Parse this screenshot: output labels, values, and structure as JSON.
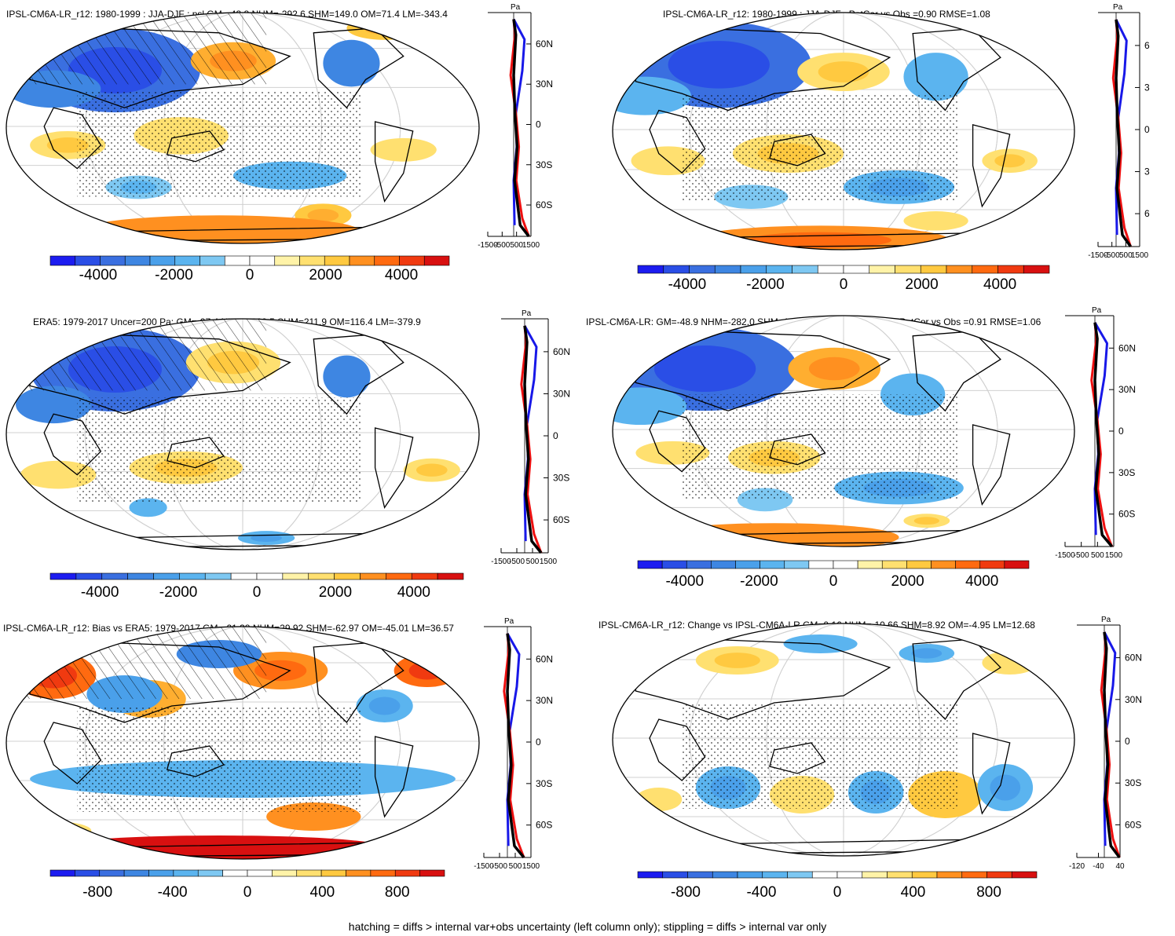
{
  "footer": "hatching = diffs > internal var+obs uncertainty (left column only); stippling = diffs > internal var only",
  "colors": {
    "scale": [
      "#1c1cf0",
      "#2a4ee6",
      "#3a6fe0",
      "#3e86e2",
      "#4aa0ea",
      "#5bb4ef",
      "#7ec8f2",
      "#ffffff",
      "#ffffff",
      "#fff3a8",
      "#ffe070",
      "#ffc940",
      "#ffae30",
      "#ff9020",
      "#ff6a10",
      "#f03a10",
      "#d81010"
    ],
    "blue_line": "#1818e8",
    "red_line": "#ee1010",
    "black_line": "#000000"
  },
  "chart_data": [
    {
      "type": "heatmap",
      "panel": "a",
      "title": "IPSL-CM6A-LR_r12: 1980-1999 : JJA-DJF : psl GM=-48.8 NHM=-292.6 SHM=149.0 OM=71.4 LM=-343.4",
      "colorbar_ticks": [
        "-4000",
        "-2000",
        "0",
        "2000",
        "4000"
      ],
      "profile": {
        "unit": "Pa",
        "lat_ticks": [
          "60N",
          "30N",
          "0",
          "30S",
          "60S"
        ],
        "x_ticks": [
          "-1500",
          "-500",
          "500",
          "1500"
        ]
      }
    },
    {
      "type": "heatmap",
      "panel": "b",
      "title": "IPSL-CM6A-LR_r12: 1980-1999 : JJA-DJF : PatCor vs Obs =0.90 RMSE=1.08",
      "colorbar_ticks": [
        "-4000",
        "-2000",
        "0",
        "2000",
        "4000"
      ],
      "profile": {
        "unit": "Pa",
        "lat_ticks": [
          "6",
          "3",
          "0",
          "3",
          "6"
        ],
        "x_ticks": [
          "-1500",
          "-500",
          "500",
          "1500"
        ]
      }
    },
    {
      "type": "heatmap",
      "panel": "c",
      "title": "ERA5: 1979-2017 Uncer=200 Pa: GM=-27.4 NHM=-322.5 SHM=211.9 OM=116.4 LM=-379.9",
      "colorbar_ticks": [
        "-4000",
        "-2000",
        "0",
        "2000",
        "4000"
      ],
      "profile": {
        "unit": "Pa",
        "lat_ticks": [
          "60N",
          "30N",
          "0",
          "30S",
          "60S"
        ],
        "x_ticks": [
          "-1500",
          "-500",
          "500",
          "1500"
        ]
      }
    },
    {
      "type": "heatmap",
      "panel": "d",
      "title": "IPSL-CM6A-LR: GM=-48.9 NHM=-282.0 SHM=140.0 OM=76.3 LM=-356.0 PatCor vs Obs =0.91 RMSE=1.06",
      "colorbar_ticks": [
        "-4000",
        "-2000",
        "0",
        "2000",
        "4000"
      ],
      "profile": {
        "unit": "Pa",
        "lat_ticks": [
          "60N",
          "30N",
          "0",
          "30S",
          "60S"
        ],
        "x_ticks": [
          "-1500",
          "-500",
          "500",
          "1500"
        ]
      }
    },
    {
      "type": "heatmap",
      "panel": "e",
      "title": "IPSL-CM6A-LR_r12: Bias vs ERA5: 1979-2017 GM=-21.38 NHM=29.92 SHM=-62.97 OM=-45.01 LM=36.57",
      "colorbar_ticks": [
        "-800",
        "-400",
        "0",
        "400",
        "800"
      ],
      "profile": {
        "unit": "Pa",
        "lat_ticks": [
          "60N",
          "30N",
          "0",
          "30S",
          "60S"
        ],
        "x_ticks": [
          "-1500",
          "-500",
          "500",
          "1500"
        ]
      }
    },
    {
      "type": "heatmap",
      "panel": "f",
      "title": "IPSL-CM6A-LR_r12: Change vs IPSL-CM6A-LR GM=0.16 NHM=-10.66 SHM=8.92 OM=-4.95 LM=12.68",
      "colorbar_ticks": [
        "-800",
        "-400",
        "0",
        "400",
        "800"
      ],
      "profile": {
        "unit": "Pa",
        "lat_ticks": [
          "60N",
          "30N",
          "0",
          "30S",
          "60S"
        ],
        "x_ticks": [
          "-120",
          "-40",
          "40"
        ]
      }
    }
  ]
}
